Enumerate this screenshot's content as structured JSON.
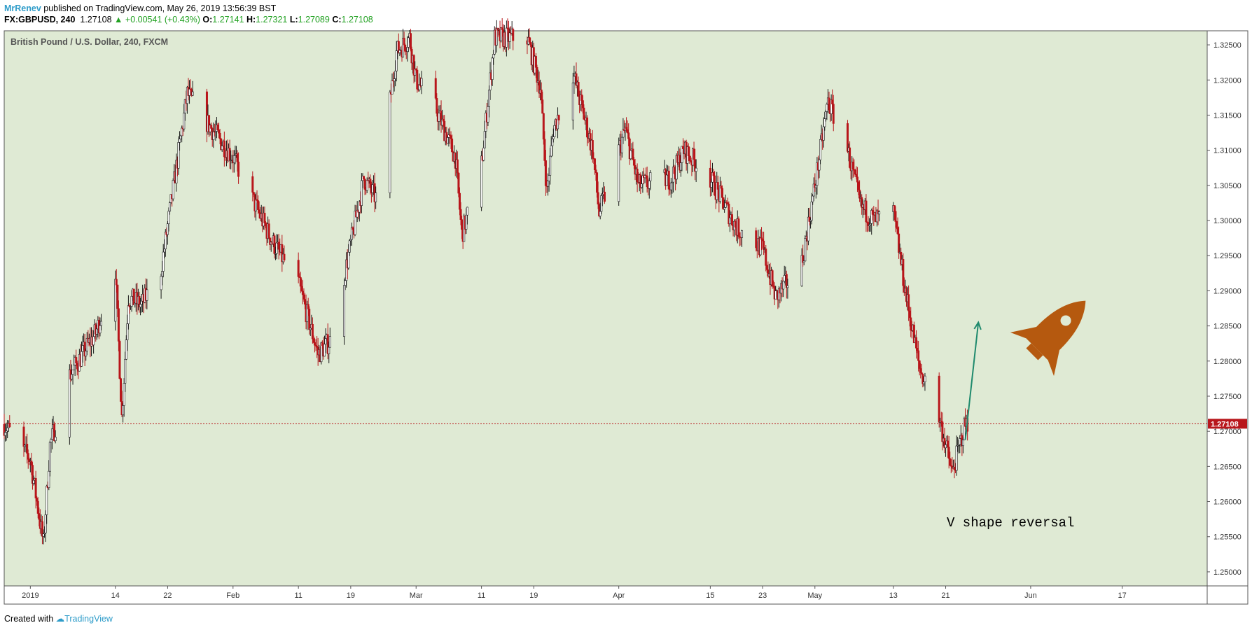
{
  "header": {
    "author": "MrRenev",
    "published": "published on TradingView.com, May 26, 2019 13:56:39 BST"
  },
  "quote": {
    "symbol": "FX:GBPUSD, 240",
    "last": "1.27108",
    "change": "▲ +0.00541 (+0.43%)",
    "open_label": "O:",
    "open": "1.27141",
    "high_label": "H:",
    "high": "1.27321",
    "low_label": "L:",
    "low": "1.27089",
    "close_label": "C:",
    "close": "1.27108"
  },
  "footer": {
    "created_with": "Created with",
    "brand": "TradingView"
  },
  "colors": {
    "plot_bg": "#dfead4",
    "bull_candle": "#1a1a1a",
    "bear_candle": "#b8161b",
    "price_line": "#b8161b",
    "arrow": "#1f8a6d",
    "rocket": "#b5590f"
  },
  "chart_data": {
    "type": "candlestick",
    "title": "British Pound / U.S. Dollar, 240, FXCM",
    "ylim": [
      1.248,
      1.327
    ],
    "y_ticks": [
      "1.32500",
      "1.32000",
      "1.31500",
      "1.31000",
      "1.30500",
      "1.30000",
      "1.29500",
      "1.29000",
      "1.28500",
      "1.28000",
      "1.27500",
      "1.27000",
      "1.26500",
      "1.26000",
      "1.25500",
      "1.25000"
    ],
    "y_tick_values": [
      1.325,
      1.32,
      1.315,
      1.31,
      1.305,
      1.3,
      1.295,
      1.29,
      1.285,
      1.28,
      1.275,
      1.27,
      1.265,
      1.26,
      1.255,
      1.25
    ],
    "x_ticks": [
      {
        "label": "2019",
        "date": "2019-01-01"
      },
      {
        "label": "14",
        "date": "2019-01-14"
      },
      {
        "label": "22",
        "date": "2019-01-22"
      },
      {
        "label": "Feb",
        "date": "2019-02-01"
      },
      {
        "label": "11",
        "date": "2019-02-11"
      },
      {
        "label": "19",
        "date": "2019-02-19"
      },
      {
        "label": "Mar",
        "date": "2019-03-01"
      },
      {
        "label": "11",
        "date": "2019-03-11"
      },
      {
        "label": "19",
        "date": "2019-03-19"
      },
      {
        "label": "Apr",
        "date": "2019-04-01"
      },
      {
        "label": "15",
        "date": "2019-04-15"
      },
      {
        "label": "23",
        "date": "2019-04-23"
      },
      {
        "label": "May",
        "date": "2019-05-01"
      },
      {
        "label": "13",
        "date": "2019-05-13"
      },
      {
        "label": "21",
        "date": "2019-05-21"
      },
      {
        "label": "Jun",
        "date": "2019-06-03"
      },
      {
        "label": "17",
        "date": "2019-06-17"
      }
    ],
    "x_range": [
      "2018-12-28",
      "2019-06-30"
    ],
    "close_path": [
      [
        "2018-12-28",
        1.271
      ],
      [
        "2019-01-01",
        1.266
      ],
      [
        "2019-01-03",
        1.254
      ],
      [
        "2019-01-04",
        1.268
      ],
      [
        "2019-01-07",
        1.278
      ],
      [
        "2019-01-11",
        1.284
      ],
      [
        "2019-01-14",
        1.293
      ],
      [
        "2019-01-15",
        1.272
      ],
      [
        "2019-01-16",
        1.289
      ],
      [
        "2019-01-18",
        1.288
      ],
      [
        "2019-01-21",
        1.293
      ],
      [
        "2019-01-25",
        1.318
      ],
      [
        "2019-01-28",
        1.314
      ],
      [
        "2019-02-01",
        1.309
      ],
      [
        "2019-02-04",
        1.303
      ],
      [
        "2019-02-07",
        1.297
      ],
      [
        "2019-02-11",
        1.291
      ],
      [
        "2019-02-14",
        1.281
      ],
      [
        "2019-02-16",
        1.283
      ],
      [
        "2019-02-18",
        1.292
      ],
      [
        "2019-02-21",
        1.306
      ],
      [
        "2019-02-23",
        1.303
      ],
      [
        "2019-02-26",
        1.324
      ],
      [
        "2019-02-28",
        1.326
      ],
      [
        "2019-03-01",
        1.32
      ],
      [
        "2019-03-04",
        1.316
      ],
      [
        "2019-03-07",
        1.309
      ],
      [
        "2019-03-08",
        1.298
      ],
      [
        "2019-03-11",
        1.308
      ],
      [
        "2019-03-12",
        1.317
      ],
      [
        "2019-03-13",
        1.326
      ],
      [
        "2019-03-18",
        1.326
      ],
      [
        "2019-03-20",
        1.319
      ],
      [
        "2019-03-21",
        1.304
      ],
      [
        "2019-03-22",
        1.313
      ],
      [
        "2019-03-25",
        1.321
      ],
      [
        "2019-03-28",
        1.31
      ],
      [
        "2019-03-29",
        1.301
      ],
      [
        "2019-04-02",
        1.313
      ],
      [
        "2019-04-04",
        1.305
      ],
      [
        "2019-04-09",
        1.306
      ],
      [
        "2019-04-11",
        1.31
      ],
      [
        "2019-04-15",
        1.306
      ],
      [
        "2019-04-19",
        1.299
      ],
      [
        "2019-04-23",
        1.296
      ],
      [
        "2019-04-25",
        1.289
      ],
      [
        "2019-04-29",
        1.294
      ],
      [
        "2019-05-01",
        1.305
      ],
      [
        "2019-05-03",
        1.317
      ],
      [
        "2019-05-06",
        1.31
      ],
      [
        "2019-05-08",
        1.302
      ],
      [
        "2019-05-10",
        1.3
      ],
      [
        "2019-05-13",
        1.301
      ],
      [
        "2019-05-15",
        1.289
      ],
      [
        "2019-05-17",
        1.279
      ],
      [
        "2019-05-20",
        1.272
      ],
      [
        "2019-05-22",
        1.264
      ],
      [
        "2019-05-24",
        1.27108
      ]
    ],
    "last_price": 1.27108,
    "last_price_label": "1.27108",
    "annotations": [
      {
        "type": "text",
        "text": "V shape reversal"
      },
      {
        "type": "arrow",
        "from": [
          "2019-05-24",
          1.2688
        ],
        "to": [
          "2019-05-26",
          1.2855
        ]
      },
      {
        "type": "icon",
        "name": "rocket-icon"
      }
    ]
  }
}
